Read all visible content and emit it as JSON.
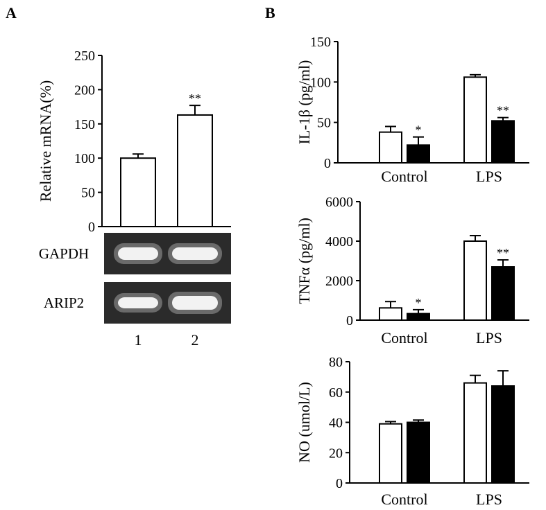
{
  "panels": [
    {
      "letter": "A"
    },
    {
      "letter": "B"
    }
  ],
  "chart_data": [
    {
      "id": "A",
      "type": "bar",
      "ylabel": "Relative mRNA(%)",
      "ylim": [
        0,
        250
      ],
      "yticks": [
        0,
        50,
        100,
        150,
        200,
        250
      ],
      "categories": [
        "1",
        "2"
      ],
      "series": [
        {
          "values": [
            100,
            163
          ],
          "errors": [
            6,
            14
          ],
          "fill": "#ffffff",
          "annotations": [
            "",
            "**"
          ]
        }
      ],
      "gel": {
        "rows": [
          {
            "label": "GAPDH"
          },
          {
            "label": "ARIP2"
          }
        ]
      }
    },
    {
      "id": "B1",
      "type": "bar",
      "ylabel": "IL-1β (pg/ml)",
      "ylim": [
        0,
        150
      ],
      "yticks": [
        0,
        50,
        100,
        150
      ],
      "categories": [
        "Control",
        "LPS"
      ],
      "series": [
        {
          "values": [
            38,
            106
          ],
          "errors": [
            7,
            3
          ],
          "fill": "#ffffff",
          "annotations": [
            "",
            ""
          ]
        },
        {
          "values": [
            22,
            52
          ],
          "errors": [
            10,
            4
          ],
          "fill": "#000000",
          "annotations": [
            "*",
            "**"
          ]
        }
      ]
    },
    {
      "id": "B2",
      "type": "bar",
      "ylabel": "TNFα (pg/ml)",
      "ylim": [
        0,
        6000
      ],
      "yticks": [
        0,
        2000,
        4000,
        6000
      ],
      "categories": [
        "Control",
        "LPS"
      ],
      "series": [
        {
          "values": [
            620,
            4000
          ],
          "errors": [
            320,
            280
          ],
          "fill": "#ffffff",
          "annotations": [
            "",
            ""
          ]
        },
        {
          "values": [
            330,
            2700
          ],
          "errors": [
            200,
            350
          ],
          "fill": "#000000",
          "annotations": [
            "*",
            "**"
          ]
        }
      ]
    },
    {
      "id": "B3",
      "type": "bar",
      "ylabel": "NO (umol/L)",
      "ylim": [
        0,
        80
      ],
      "yticks": [
        0,
        20,
        40,
        60,
        80
      ],
      "categories": [
        "Control",
        "LPS"
      ],
      "series": [
        {
          "values": [
            39,
            66
          ],
          "errors": [
            1.5,
            5
          ],
          "fill": "#ffffff",
          "annotations": [
            "",
            ""
          ]
        },
        {
          "values": [
            40,
            64
          ],
          "errors": [
            1.5,
            10
          ],
          "fill": "#000000",
          "annotations": [
            "",
            ""
          ]
        }
      ]
    }
  ]
}
